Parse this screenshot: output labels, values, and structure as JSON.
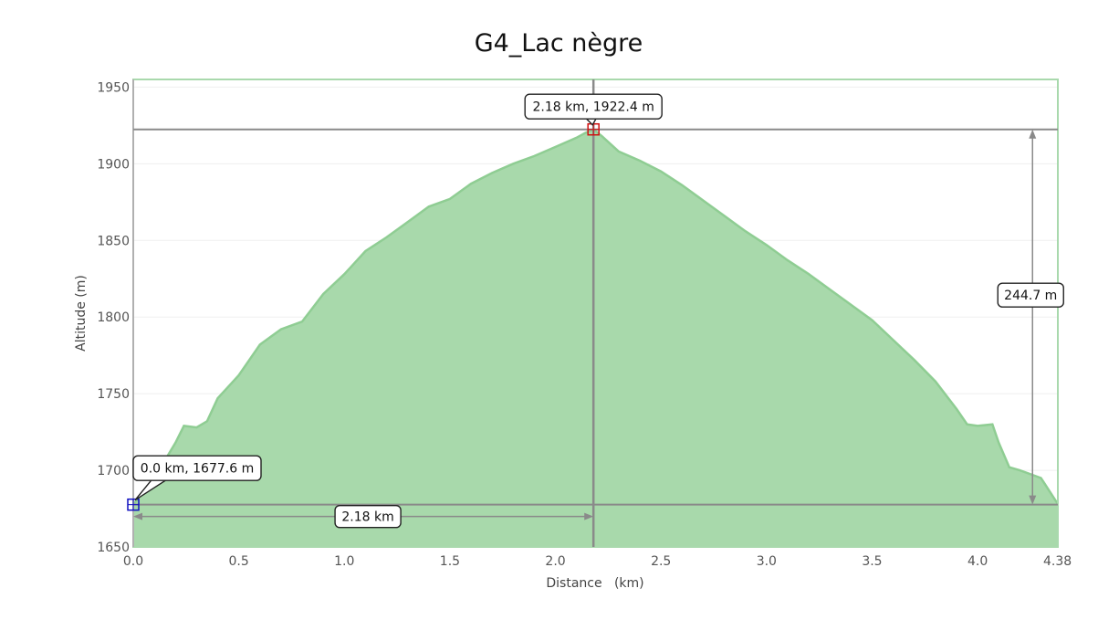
{
  "chart_data": {
    "type": "area",
    "title": "G4_Lac nègre",
    "xlabel": "Distance   (km)",
    "ylabel": "Altitude (m)",
    "xlim": [
      0,
      4.38
    ],
    "ylim": [
      1650,
      1955
    ],
    "x_ticks": [
      "0.0",
      "0.5",
      "1.0",
      "1.5",
      "2.0",
      "2.5",
      "3.0",
      "3.5",
      "4.0",
      "4.38"
    ],
    "y_ticks": [
      "1650",
      "1700",
      "1750",
      "1800",
      "1850",
      "1900",
      "1950"
    ],
    "grid": true,
    "colors": {
      "fill": "#a8d9ab",
      "line": "#8fcd93",
      "frame": "#a9d9ad",
      "guide": "#8a8a8a",
      "start_marker": "#1010c0",
      "end_marker": "#d01010"
    },
    "series": [
      {
        "x": [
          0.0,
          0.1,
          0.2,
          0.24,
          0.3,
          0.35,
          0.4,
          0.5,
          0.6,
          0.7,
          0.8,
          0.9,
          1.0,
          1.1,
          1.2,
          1.3,
          1.4,
          1.5,
          1.6,
          1.7,
          1.8,
          1.9,
          2.0,
          2.1,
          2.14,
          2.18,
          2.22,
          2.3,
          2.4,
          2.5,
          2.6,
          2.7,
          2.8,
          2.9,
          3.0,
          3.1,
          3.2,
          3.3,
          3.4,
          3.5,
          3.6,
          3.7,
          3.8,
          3.9,
          3.95,
          4.0,
          4.07,
          4.1,
          4.15,
          4.2,
          4.3,
          4.38
        ],
        "y": [
          1677.6,
          1695,
          1718,
          1729,
          1728,
          1732,
          1747,
          1762,
          1782,
          1792,
          1797,
          1815,
          1828,
          1843,
          1852,
          1862,
          1872,
          1877,
          1887,
          1894,
          1900,
          1905,
          1911,
          1917,
          1920,
          1922.4,
          1918,
          1908,
          1902,
          1895,
          1886,
          1876,
          1866,
          1856,
          1847,
          1837,
          1828,
          1818,
          1808,
          1798,
          1785,
          1772,
          1758,
          1740,
          1730,
          1729,
          1730,
          1718,
          1702,
          1700,
          1695,
          1678
        ]
      }
    ],
    "start_point": {
      "x": 0.0,
      "y": 1677.6,
      "label": "0.0 km, 1677.6 m"
    },
    "end_point": {
      "x": 2.18,
      "y": 1922.4,
      "label": "2.18 km, 1922.4 m"
    },
    "distance_label": "2.18 km",
    "altitude_diff_label": "244.7 m",
    "altitude_diff_x": 4.26
  }
}
